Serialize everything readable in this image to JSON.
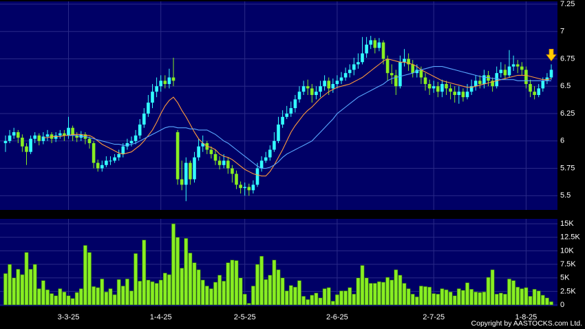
{
  "chart_data": [
    {
      "type": "candlestick",
      "categories": [
        null,
        null,
        null,
        null,
        null,
        null,
        null,
        null,
        null,
        null,
        null,
        null,
        null,
        null,
        null,
        "3-3-25",
        null,
        null,
        null,
        null,
        null,
        null,
        null,
        null,
        null,
        null,
        null,
        null,
        null,
        null,
        null,
        null,
        null,
        null,
        null,
        null,
        null,
        "1-4-25",
        null,
        null,
        null,
        null,
        null,
        null,
        null,
        null,
        null,
        null,
        null,
        null,
        null,
        null,
        null,
        null,
        null,
        null,
        null,
        "2-5-25",
        null,
        null,
        null,
        null,
        null,
        null,
        null,
        null,
        null,
        null,
        null,
        null,
        null,
        null,
        null,
        null,
        null,
        null,
        null,
        null,
        null,
        "2-6-25",
        null,
        null,
        null,
        null,
        null,
        null,
        null,
        null,
        null,
        null,
        null,
        null,
        null,
        null,
        null,
        null,
        null,
        null,
        null,
        null,
        null,
        null,
        "2-7-25",
        null,
        null,
        null,
        null,
        null,
        null,
        null,
        null,
        null,
        null,
        null,
        null,
        null,
        null,
        null,
        null,
        null,
        null,
        null,
        null,
        null,
        "1-8-25",
        null,
        null,
        null,
        null,
        null,
        null
      ],
      "open": [
        5.98,
        6.0,
        6.05,
        6.08,
        6.03,
        5.95,
        5.9,
        6.02,
        6.05,
        6.0,
        6.04,
        6.06,
        6.02,
        6.05,
        6.07,
        6.05,
        6.12,
        6.05,
        6.03,
        6.06,
        6.02,
        5.98,
        5.8,
        5.75,
        5.78,
        5.82,
        5.82,
        5.85,
        5.88,
        5.95,
        5.98,
        6.0,
        6.05,
        6.15,
        6.25,
        6.35,
        6.45,
        6.5,
        6.55,
        6.52,
        6.58,
        6.08,
        5.65,
        5.6,
        5.8,
        5.65,
        5.85,
        5.95,
        5.98,
        5.92,
        5.88,
        5.82,
        5.78,
        5.82,
        5.75,
        5.7,
        5.6,
        5.57,
        5.58,
        5.55,
        5.6,
        5.75,
        5.82,
        5.85,
        5.92,
        6.0,
        6.15,
        6.22,
        6.25,
        6.3,
        6.38,
        6.45,
        6.5,
        6.48,
        6.42,
        6.45,
        6.5,
        6.55,
        6.48,
        6.52,
        6.55,
        6.58,
        6.62,
        6.65,
        6.7,
        6.72,
        6.8,
        6.88,
        6.92,
        6.85,
        6.9,
        6.75,
        6.62,
        6.6,
        6.5,
        6.72,
        6.75,
        6.7,
        6.62,
        6.65,
        6.58,
        6.52,
        6.48,
        6.5,
        6.45,
        6.52,
        6.48,
        6.45,
        6.42,
        6.45,
        6.4,
        6.45,
        6.5,
        6.55,
        6.52,
        6.6,
        6.55,
        6.5,
        6.62,
        6.65,
        6.6,
        6.68,
        6.7,
        6.68,
        6.65,
        6.52,
        6.45,
        6.42,
        6.48,
        6.55,
        6.58
      ],
      "high": [
        6.05,
        6.1,
        6.12,
        6.1,
        6.06,
        5.98,
        6.05,
        6.08,
        6.07,
        6.08,
        6.1,
        6.08,
        6.08,
        6.1,
        6.1,
        6.22,
        6.14,
        6.08,
        6.09,
        6.08,
        6.04,
        6.0,
        5.83,
        5.82,
        5.86,
        5.86,
        5.88,
        5.92,
        5.98,
        6.02,
        6.04,
        6.1,
        6.2,
        6.3,
        6.42,
        6.52,
        6.58,
        6.6,
        6.6,
        6.66,
        6.76,
        6.1,
        5.82,
        5.85,
        5.82,
        5.9,
        6.02,
        6.05,
        6.0,
        5.95,
        5.92,
        5.86,
        5.88,
        5.85,
        5.78,
        5.73,
        5.63,
        5.62,
        5.61,
        5.64,
        5.8,
        5.86,
        5.9,
        5.96,
        6.08,
        6.22,
        6.28,
        6.32,
        6.36,
        6.42,
        6.5,
        6.55,
        6.56,
        6.52,
        6.5,
        6.55,
        6.6,
        6.58,
        6.57,
        6.6,
        6.63,
        6.67,
        6.7,
        6.76,
        6.8,
        6.95,
        6.95,
        6.96,
        6.94,
        6.94,
        6.92,
        6.78,
        6.7,
        6.65,
        6.78,
        6.84,
        6.8,
        6.74,
        6.7,
        6.68,
        6.62,
        6.56,
        6.55,
        6.54,
        6.56,
        6.55,
        6.52,
        6.5,
        6.5,
        6.48,
        6.52,
        6.56,
        6.6,
        6.6,
        6.65,
        6.64,
        6.58,
        6.68,
        6.72,
        6.7,
        6.83,
        6.78,
        6.74,
        6.72,
        6.68,
        6.56,
        6.5,
        6.52,
        6.58,
        6.62,
        6.7
      ],
      "low": [
        5.9,
        5.98,
        6.02,
        5.98,
        5.9,
        5.78,
        5.88,
        5.98,
        5.96,
        5.97,
        6.0,
        5.98,
        5.99,
        6.02,
        6.0,
        6.02,
        6.0,
        5.99,
        6.0,
        5.97,
        5.93,
        5.75,
        5.72,
        5.72,
        5.76,
        5.78,
        5.8,
        5.82,
        5.85,
        5.92,
        5.95,
        5.97,
        6.02,
        6.12,
        6.22,
        6.3,
        6.4,
        6.45,
        6.48,
        6.48,
        6.5,
        5.6,
        5.55,
        5.45,
        5.6,
        5.62,
        5.82,
        5.9,
        5.88,
        5.84,
        5.78,
        5.74,
        5.75,
        5.7,
        5.62,
        5.56,
        5.52,
        5.5,
        5.5,
        5.52,
        5.58,
        5.72,
        5.8,
        5.82,
        5.9,
        5.98,
        6.12,
        6.2,
        6.22,
        6.26,
        6.35,
        6.42,
        6.42,
        6.35,
        6.38,
        6.4,
        6.46,
        6.42,
        6.44,
        6.48,
        6.52,
        6.55,
        6.58,
        6.6,
        6.66,
        6.7,
        6.76,
        6.84,
        6.8,
        6.82,
        6.7,
        6.55,
        6.52,
        6.42,
        6.48,
        6.68,
        6.64,
        6.58,
        6.58,
        6.52,
        6.46,
        6.42,
        6.44,
        6.4,
        6.4,
        6.42,
        6.38,
        6.35,
        6.34,
        6.36,
        6.38,
        6.42,
        6.46,
        6.48,
        6.48,
        6.5,
        6.45,
        6.48,
        6.58,
        6.56,
        6.58,
        6.64,
        6.62,
        6.6,
        6.48,
        6.4,
        6.38,
        6.4,
        6.45,
        6.52,
        6.56
      ],
      "close": [
        6.0,
        6.05,
        6.08,
        6.03,
        5.95,
        5.9,
        6.02,
        6.05,
        6.0,
        6.04,
        6.06,
        6.02,
        6.05,
        6.07,
        6.05,
        6.12,
        6.05,
        6.03,
        6.06,
        6.02,
        5.98,
        5.8,
        5.75,
        5.78,
        5.82,
        5.82,
        5.85,
        5.88,
        5.95,
        5.98,
        6.0,
        6.05,
        6.15,
        6.25,
        6.35,
        6.45,
        6.5,
        6.55,
        6.52,
        6.58,
        6.55,
        5.65,
        5.6,
        5.8,
        5.65,
        5.85,
        5.95,
        5.98,
        5.92,
        5.88,
        5.82,
        5.78,
        5.82,
        5.75,
        5.7,
        5.6,
        5.57,
        5.58,
        5.55,
        5.6,
        5.75,
        5.82,
        5.85,
        5.92,
        6.0,
        6.15,
        6.22,
        6.25,
        6.3,
        6.38,
        6.45,
        6.5,
        6.48,
        6.42,
        6.45,
        6.5,
        6.55,
        6.48,
        6.52,
        6.55,
        6.58,
        6.62,
        6.65,
        6.7,
        6.72,
        6.8,
        6.88,
        6.92,
        6.85,
        6.9,
        6.75,
        6.62,
        6.6,
        6.5,
        6.72,
        6.75,
        6.7,
        6.62,
        6.65,
        6.58,
        6.52,
        6.48,
        6.5,
        6.45,
        6.52,
        6.48,
        6.45,
        6.42,
        6.45,
        6.4,
        6.45,
        6.5,
        6.55,
        6.52,
        6.6,
        6.55,
        6.5,
        6.62,
        6.65,
        6.6,
        6.68,
        6.7,
        6.68,
        6.65,
        6.52,
        6.45,
        6.42,
        6.48,
        6.55,
        6.58,
        6.65
      ],
      "up_color": "#33ffff",
      "down_color": "#88ee22",
      "series": [
        {
          "color": "#ff9a3c",
          "values": [
            null,
            null,
            null,
            null,
            null,
            null,
            null,
            null,
            null,
            6.03,
            6.03,
            6.04,
            6.04,
            6.04,
            6.05,
            6.05,
            6.06,
            6.06,
            6.06,
            6.05,
            6.05,
            6.03,
            6.0,
            5.97,
            5.95,
            5.93,
            5.91,
            5.89,
            5.88,
            5.89,
            5.9,
            5.93,
            5.96,
            6.0,
            6.05,
            6.1,
            6.17,
            6.25,
            6.32,
            6.37,
            6.4,
            6.35,
            6.28,
            6.22,
            6.15,
            6.08,
            6.02,
            5.98,
            5.95,
            5.94,
            5.92,
            5.88,
            5.86,
            5.85,
            5.83,
            5.8,
            5.77,
            5.74,
            5.72,
            5.7,
            5.69,
            5.68,
            5.68,
            5.72,
            5.78,
            5.85,
            5.92,
            6.0,
            6.08,
            6.14,
            6.19,
            6.24,
            6.28,
            6.31,
            6.35,
            6.39,
            6.42,
            6.45,
            6.47,
            6.49,
            6.5,
            6.51,
            6.52,
            6.54,
            6.56,
            6.58,
            6.61,
            6.64,
            6.67,
            6.7,
            6.73,
            6.75,
            6.74,
            6.73,
            6.72,
            6.72,
            6.71,
            6.7,
            6.68,
            6.65,
            6.63,
            6.61,
            6.59,
            6.57,
            6.55,
            6.54,
            6.53,
            6.52,
            6.51,
            6.5,
            6.49,
            6.49,
            6.5,
            6.51,
            6.52,
            6.53,
            6.54,
            6.55,
            6.56,
            6.57,
            6.58,
            6.59,
            6.6,
            6.6,
            6.6,
            6.59,
            6.58,
            6.57,
            6.56,
            6.56,
            6.57
          ]
        },
        {
          "color": "#5aa8ff",
          "values": [
            null,
            null,
            null,
            null,
            null,
            null,
            null,
            null,
            null,
            null,
            null,
            null,
            null,
            null,
            null,
            6.05,
            6.05,
            6.05,
            6.04,
            6.04,
            6.03,
            6.02,
            6.01,
            6.0,
            5.99,
            5.98,
            5.97,
            5.97,
            5.96,
            5.96,
            5.97,
            5.98,
            6.0,
            6.02,
            6.04,
            6.06,
            6.08,
            6.1,
            6.12,
            6.13,
            6.13,
            6.12,
            6.12,
            6.12,
            6.11,
            6.11,
            6.1,
            6.1,
            6.1,
            6.08,
            6.06,
            6.03,
            6.0,
            5.98,
            5.95,
            5.92,
            5.89,
            5.86,
            5.83,
            5.8,
            5.77,
            5.75,
            5.75,
            5.76,
            5.78,
            5.81,
            5.85,
            5.88,
            5.9,
            5.92,
            5.94,
            5.96,
            5.98,
            6.0,
            6.04,
            6.08,
            6.12,
            6.16,
            6.2,
            6.25,
            6.28,
            6.31,
            6.34,
            6.37,
            6.4,
            6.42,
            6.44,
            6.46,
            6.48,
            6.5,
            6.52,
            6.55,
            6.57,
            6.58,
            6.59,
            6.6,
            6.61,
            6.62,
            6.64,
            6.65,
            6.66,
            6.67,
            6.68,
            6.68,
            6.68,
            6.67,
            6.66,
            6.65,
            6.64,
            6.63,
            6.62,
            6.61,
            6.6,
            6.59,
            6.58,
            6.58,
            6.57,
            6.57,
            6.56,
            6.56,
            6.56,
            6.56,
            6.55,
            6.55,
            6.55,
            6.55,
            6.55,
            6.55,
            6.55,
            6.55,
            6.55
          ]
        }
      ],
      "ylim": [
        5.37,
        7.275
      ],
      "yticks": [
        5.5,
        5.75,
        6,
        6.25,
        6.5,
        6.75,
        7,
        7.25
      ],
      "grid": true
    },
    {
      "type": "bar",
      "color": "#88ee22",
      "values": [
        5800,
        7500,
        5000,
        6600,
        5600,
        9700,
        6600,
        7500,
        3000,
        4500,
        2800,
        2100,
        1700,
        3000,
        2400,
        1700,
        1200,
        2300,
        3000,
        11000,
        9700,
        3400,
        3200,
        4800,
        2400,
        3000,
        1900,
        4700,
        3500,
        4800,
        2600,
        9500,
        4400,
        12000,
        4600,
        4300,
        4000,
        4600,
        5900,
        5600,
        15000,
        12500,
        6800,
        12300,
        9600,
        7800,
        6500,
        4600,
        3500,
        3000,
        4200,
        5500,
        4400,
        7800,
        8300,
        8200,
        5000,
        2000,
        300,
        3500,
        7500,
        9000,
        4700,
        5500,
        8300,
        6500,
        5000,
        2600,
        3600,
        3300,
        4500,
        1600,
        1000,
        1800,
        2200,
        1300,
        3000,
        3200,
        700,
        1900,
        2600,
        2600,
        3200,
        2000,
        5000,
        7300,
        5000,
        4000,
        4000,
        4300,
        4200,
        5100,
        4600,
        6500,
        5500,
        4000,
        3000,
        2000,
        1500,
        3500,
        3400,
        3300,
        2100,
        2000,
        3000,
        2800,
        2400,
        1700,
        3000,
        2700,
        4100,
        2900,
        2400,
        2300,
        2400,
        5100,
        6500,
        2000,
        2200,
        2000,
        4800,
        4500,
        3300,
        3000,
        3200,
        1600,
        2900,
        2600,
        1800,
        1300,
        600
      ],
      "ylim": [
        0,
        15900
      ],
      "yticks": [
        0,
        {
          "value": 2500,
          "label": "2.5K"
        },
        {
          "value": 5000,
          "label": "5K"
        },
        {
          "value": 7500,
          "label": "7.5K"
        },
        {
          "value": 10000,
          "label": "10K"
        },
        {
          "value": 12500,
          "label": "12.5K"
        },
        {
          "value": 15000,
          "label": "15K"
        }
      ],
      "grid": true
    }
  ],
  "copyright": "Copyright by AASTOCKS.com Ltd."
}
